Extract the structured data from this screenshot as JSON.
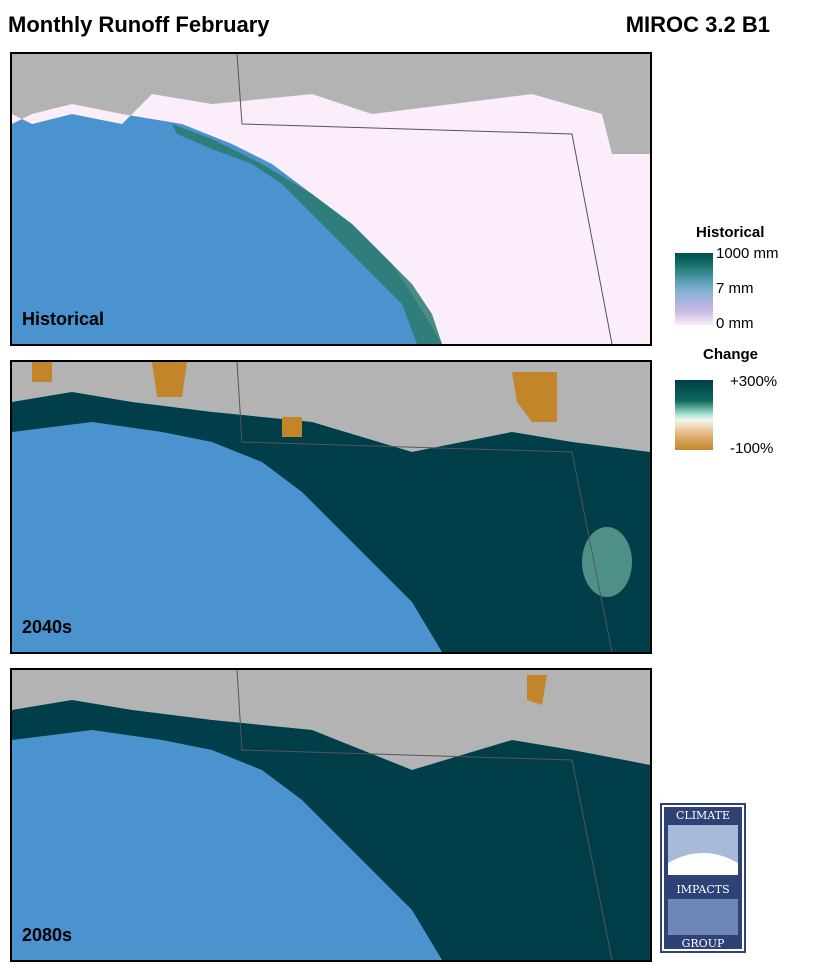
{
  "title_left": "Monthly Runoff February",
  "title_right": "MIROC 3.2 B1",
  "panels": [
    {
      "label": "Historical"
    },
    {
      "label": "2040s"
    },
    {
      "label": "2080s"
    }
  ],
  "legend": {
    "historical_title": "Historical",
    "historical_ticks": [
      "1000 mm",
      "7 mm",
      "0 mm"
    ],
    "change_title": "Change",
    "change_ticks": [
      "+300%",
      "-100%"
    ]
  },
  "logo": {
    "top": "CLIMATE",
    "middle": "IMPACTS",
    "bottom": "GROUP"
  },
  "colors": {
    "ocean": "#4a93cf",
    "no_data": "#b3b3b3",
    "historical_low": "#fbeefa",
    "change_high": "#003f49",
    "change_low": "#c38529"
  }
}
